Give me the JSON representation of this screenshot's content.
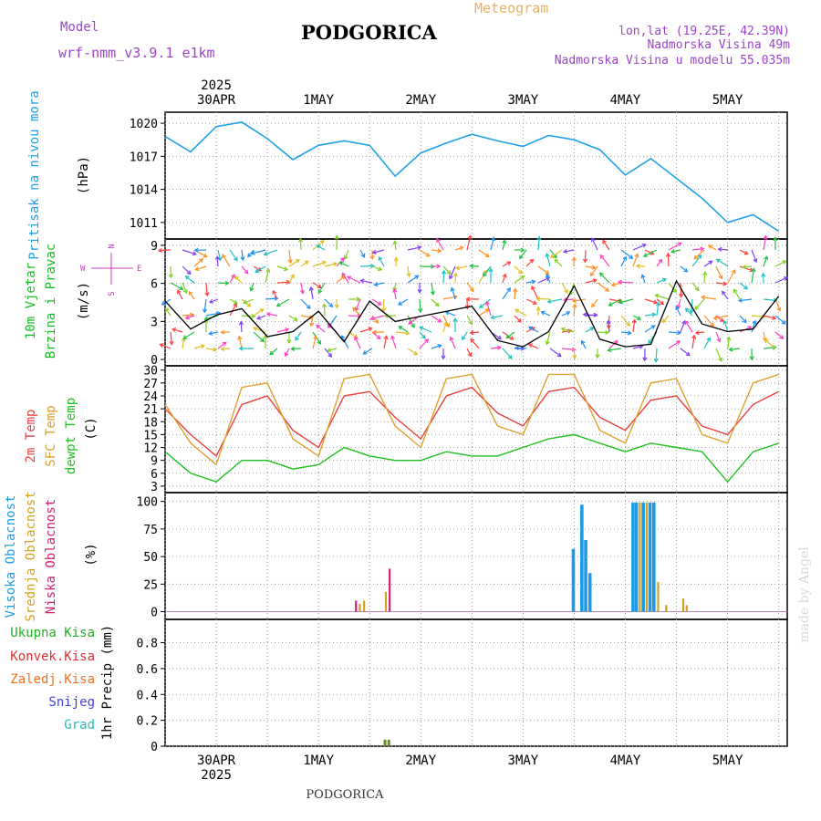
{
  "header": {
    "model_label": "Model",
    "model_name": "wrf-nmm_v3.9.1 e1km",
    "title": "PODGORICA",
    "subtitle": "Meteogram",
    "coords": "lon,lat (19.25E, 42.39N)",
    "elevation": "Nadmorska Visina 49m",
    "model_elevation": "Nadmorska Visina u modelu 55.035m"
  },
  "footer": {
    "station": "PODGORICA",
    "watermark": "made by Angel"
  },
  "colors": {
    "pressure": "#20a0e8",
    "wind_label": "#10c020",
    "wind_sub": "#c040c0",
    "temp2m": "#e84040",
    "sfc": "#e0a030",
    "dew": "#20c020",
    "high_cloud": "#1e9be6",
    "mid_cloud": "#d4a020",
    "low_cloud": "#d02070",
    "total_precip": "#20b020",
    "conv_precip": "#e03030",
    "frz_precip": "#f07020",
    "snow": "#4040e0",
    "graupel": "#20c0c0",
    "header_purple": "#9b44c8",
    "meteogram": "#e8b060"
  },
  "chart_data": [
    {
      "type": "line",
      "id": "pressure",
      "ylabel": "Pritisak na nivou mora",
      "unit": "(hPa)",
      "yticks": [
        1011,
        1014,
        1017,
        1020
      ],
      "ylim": [
        1009.5,
        1021.0
      ],
      "x_hours": [
        0,
        6,
        12,
        18,
        24,
        30,
        36,
        42,
        48,
        54,
        60,
        66,
        72,
        78,
        84,
        90,
        96,
        102,
        108,
        114,
        120,
        126,
        132,
        138,
        144
      ],
      "values": [
        1018.8,
        1017.4,
        1019.7,
        1020.1,
        1018.6,
        1016.7,
        1018.0,
        1018.4,
        1018.0,
        1015.2,
        1017.3,
        1018.2,
        1019.0,
        1018.4,
        1017.9,
        1018.9,
        1018.5,
        1017.6,
        1015.3,
        1016.8,
        1015.0,
        1013.2,
        1011.0,
        1011.7,
        1010.2
      ]
    },
    {
      "type": "line",
      "id": "wind",
      "ylabel": "10m Vjetar",
      "ylabel2": "Brzina i Pravac",
      "unit": "(m/s)",
      "compass": [
        "W",
        "E",
        "N",
        "S"
      ],
      "yticks": [
        0,
        3,
        6,
        9
      ],
      "ylim": [
        -0.5,
        9.5
      ],
      "x_hours": [
        0,
        6,
        12,
        18,
        24,
        30,
        36,
        42,
        48,
        54,
        60,
        66,
        72,
        78,
        84,
        90,
        96,
        102,
        108,
        114,
        120,
        126,
        132,
        138,
        144
      ],
      "values": [
        4.6,
        2.4,
        3.5,
        4.0,
        1.8,
        2.2,
        3.8,
        1.4,
        4.6,
        3.0,
        3.4,
        3.8,
        4.2,
        1.5,
        1.0,
        2.2,
        5.8,
        1.6,
        1.0,
        1.2,
        6.2,
        2.8,
        2.2,
        2.4,
        5.0
      ]
    },
    {
      "type": "line",
      "id": "temperature",
      "ylabel": "2m Temp",
      "ylabel2": "SFC Temp",
      "ylabel3": "dewpt Temp",
      "unit": "(C)",
      "yticks": [
        3,
        6,
        9,
        12,
        15,
        18,
        21,
        24,
        27,
        30
      ],
      "ylim": [
        1.5,
        31.0
      ],
      "x_hours": [
        0,
        6,
        12,
        18,
        24,
        30,
        36,
        42,
        48,
        54,
        60,
        66,
        72,
        78,
        84,
        90,
        96,
        102,
        108,
        114,
        120,
        126,
        132,
        138,
        144
      ],
      "series": [
        {
          "id": "temp2m",
          "values": [
            21,
            15,
            10,
            22,
            24,
            16,
            12,
            24,
            25,
            19,
            14,
            24,
            26,
            20,
            17,
            25,
            26,
            19,
            16,
            23,
            24,
            17,
            15,
            22,
            25
          ]
        },
        {
          "id": "sfc",
          "values": [
            22,
            13,
            8,
            26,
            27,
            14,
            10,
            28,
            29,
            17,
            12,
            28,
            29,
            17,
            15,
            29,
            29,
            16,
            13,
            27,
            28,
            15,
            13,
            27,
            29
          ]
        },
        {
          "id": "dew",
          "values": [
            11,
            6,
            4,
            9,
            9,
            7,
            8,
            12,
            10,
            9,
            9,
            11,
            10,
            10,
            12,
            14,
            15,
            13,
            11,
            13,
            12,
            11,
            4,
            11,
            13
          ]
        }
      ]
    },
    {
      "type": "bar",
      "id": "cloud",
      "ylabel": "Visoka Oblacnost",
      "ylabel2": "Srednja Oblacnost",
      "ylabel3": "Niska Oblacnost",
      "unit": "(%)",
      "yticks": [
        0,
        25,
        50,
        75,
        100
      ],
      "ylim": [
        -7,
        108
      ],
      "bars": [
        {
          "x": 44.8,
          "v": 10,
          "layer": "low"
        },
        {
          "x": 45.7,
          "v": 7,
          "layer": "mid"
        },
        {
          "x": 46.7,
          "v": 10,
          "layer": "mid"
        },
        {
          "x": 51.8,
          "v": 18,
          "layer": "mid"
        },
        {
          "x": 52.7,
          "v": 39,
          "layer": "low"
        },
        {
          "x": 95.8,
          "v": 57,
          "layer": "high"
        },
        {
          "x": 97.8,
          "v": 97,
          "layer": "high"
        },
        {
          "x": 98.7,
          "v": 65,
          "layer": "high"
        },
        {
          "x": 99.7,
          "v": 35,
          "layer": "high"
        },
        {
          "x": 109.8,
          "v": 99,
          "layer": "high"
        },
        {
          "x": 110.6,
          "v": 99,
          "layer": "high"
        },
        {
          "x": 111.4,
          "v": 99,
          "layer": "mid"
        },
        {
          "x": 112.2,
          "v": 99,
          "layer": "high"
        },
        {
          "x": 113.0,
          "v": 99,
          "layer": "mid"
        },
        {
          "x": 113.8,
          "v": 99,
          "layer": "high"
        },
        {
          "x": 114.7,
          "v": 99,
          "layer": "high"
        },
        {
          "x": 115.7,
          "v": 27,
          "layer": "mid"
        },
        {
          "x": 117.6,
          "v": 6,
          "layer": "mid"
        },
        {
          "x": 121.6,
          "v": 12,
          "layer": "mid"
        },
        {
          "x": 122.4,
          "v": 6,
          "layer": "mid"
        }
      ]
    },
    {
      "type": "bar",
      "id": "precip",
      "ylabel": "1hr Precip (mm)",
      "legend": [
        "Ukupna Kisa",
        "Konvek.Kisa",
        "Zaledj.Kisa",
        "Snijeg",
        "Grad"
      ],
      "yticks": [
        0,
        0.2,
        0.4,
        0.6,
        0.8
      ],
      "ylim": [
        0,
        0.98
      ],
      "bars": [
        {
          "x": 51.6,
          "v": 0.05
        },
        {
          "x": 52.5,
          "v": 0.05
        }
      ]
    }
  ],
  "x_axis": {
    "day_labels": [
      "30APR",
      "1MAY",
      "2MAY",
      "3MAY",
      "4MAY",
      "5MAY"
    ],
    "day_hours": [
      12,
      36,
      60,
      84,
      108,
      132
    ],
    "year": "2025",
    "range_hours": [
      0,
      146
    ]
  }
}
